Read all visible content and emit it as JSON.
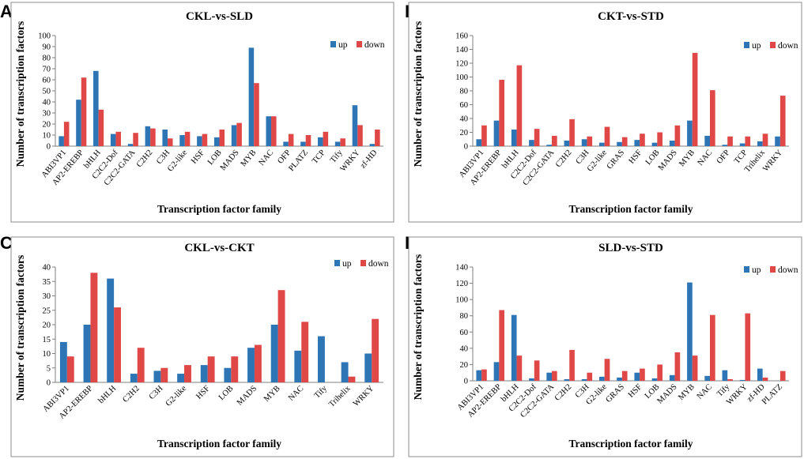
{
  "colors": {
    "up": "#2E75B6",
    "down": "#E04848",
    "frame": "#8c8c8c",
    "axis": "#7f7f7f"
  },
  "chart_data": [
    {
      "panel": "A",
      "type": "bar",
      "title": "CKL-vs-SLD",
      "xlabel": "Transcription factor family",
      "ylabel": "Number of transcription factors",
      "ylim": [
        0,
        100
      ],
      "ytick_step": 10,
      "legend": "top-right",
      "categories": [
        "ABI3VP1",
        "AP2-EREBP",
        "bHLH",
        "C2C2-Dof",
        "C2C2-GATA",
        "C2H2",
        "C3H",
        "G2-like",
        "HSF",
        "LOB",
        "MADS",
        "MYB",
        "NAC",
        "OFP",
        "PLATZ",
        "TCP",
        "Tify",
        "WRKY",
        "zf-HD"
      ],
      "series": [
        {
          "name": "up",
          "values": [
            9,
            42,
            68,
            11,
            2,
            18,
            15,
            10,
            9,
            8,
            19,
            89,
            27,
            4,
            4,
            8,
            4,
            37,
            2
          ]
        },
        {
          "name": "down",
          "values": [
            22,
            62,
            33,
            13,
            12,
            16,
            7,
            13,
            11,
            15,
            21,
            57,
            27,
            11,
            10,
            13,
            7,
            19,
            15
          ]
        }
      ]
    },
    {
      "panel": "B",
      "type": "bar",
      "title": "CKT-vs-STD",
      "xlabel": "Transcription factor family",
      "ylabel": "Number of transcription factors",
      "ylim": [
        0,
        160
      ],
      "ytick_step": 20,
      "legend": "top-right",
      "categories": [
        "ABI3VP1",
        "AP2-EREBP",
        "bHLH",
        "C2C2-Dof",
        "C2C2-GATA",
        "C2H2",
        "C3H",
        "G2-like",
        "GRAS",
        "HSF",
        "LOB",
        "MADS",
        "MYB",
        "NAC",
        "OFP",
        "TCP",
        "Trihelix",
        "WRKY"
      ],
      "series": [
        {
          "name": "up",
          "values": [
            10,
            37,
            24,
            9,
            2,
            8,
            10,
            5,
            6,
            9,
            5,
            8,
            37,
            15,
            2,
            4,
            7,
            14
          ]
        },
        {
          "name": "down",
          "values": [
            30,
            96,
            117,
            25,
            15,
            39,
            14,
            28,
            13,
            18,
            20,
            30,
            135,
            81,
            14,
            14,
            18,
            73
          ]
        }
      ]
    },
    {
      "panel": "C",
      "type": "bar",
      "title": "CKL-vs-CKT",
      "xlabel": "Transcription factor family",
      "ylabel": "Number of transcription factors",
      "ylim": [
        0,
        40
      ],
      "ytick_step": 5,
      "legend": "top-right",
      "categories": [
        "ABI3VP1",
        "AP2-EREBP",
        "bHLH",
        "C2H2",
        "C3H",
        "G2-like",
        "HSF",
        "LOB",
        "MADS",
        "MYB",
        "NAC",
        "Tify",
        "Trihelix",
        "WRKY"
      ],
      "series": [
        {
          "name": "up",
          "values": [
            14,
            20,
            36,
            3,
            4,
            3,
            6,
            5,
            12,
            20,
            11,
            16,
            7,
            10
          ]
        },
        {
          "name": "down",
          "values": [
            9,
            38,
            26,
            12,
            5,
            6,
            9,
            9,
            13,
            32,
            21,
            0,
            2,
            22
          ]
        }
      ]
    },
    {
      "panel": "D",
      "type": "bar",
      "title": "SLD-vs-STD",
      "xlabel": "Transcription factor family",
      "ylabel": "Number of transcription factors",
      "ylim": [
        0,
        140
      ],
      "ytick_step": 20,
      "legend": "top-right",
      "categories": [
        "ABI3VP1",
        "AP2-EREBP",
        "bHLH",
        "C2C2-Dof",
        "C2C2-GATA",
        "C2H2",
        "C3H",
        "G2-like",
        "GRAS",
        "HSF",
        "LOB",
        "MADS",
        "MYB",
        "NAC",
        "Tify",
        "WRKY",
        "zf-HD",
        "PLATZ"
      ],
      "series": [
        {
          "name": "up",
          "values": [
            13,
            23,
            81,
            3,
            10,
            2,
            2,
            5,
            4,
            10,
            3,
            7,
            121,
            6,
            13,
            1,
            15,
            0
          ]
        },
        {
          "name": "down",
          "values": [
            14,
            87,
            31,
            25,
            12,
            38,
            10,
            27,
            12,
            15,
            20,
            35,
            31,
            81,
            2,
            83,
            4,
            12
          ]
        }
      ]
    }
  ]
}
